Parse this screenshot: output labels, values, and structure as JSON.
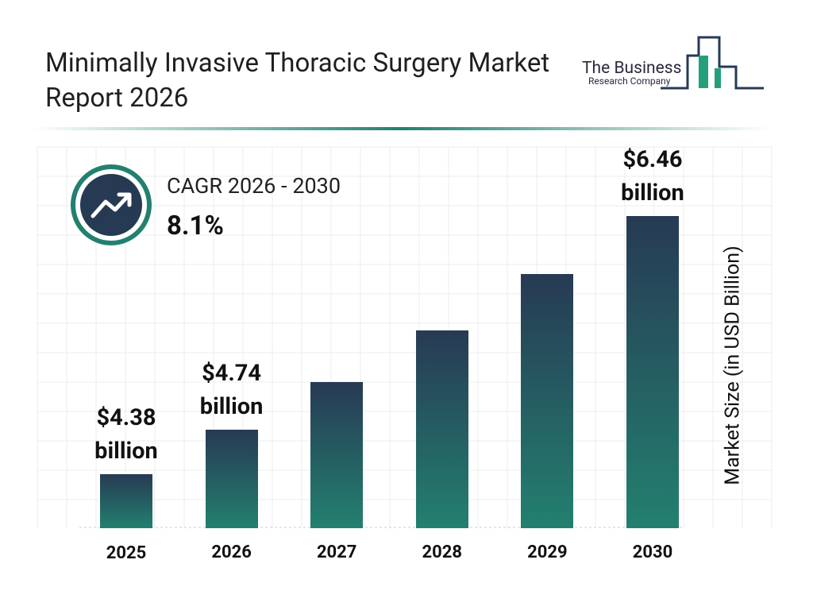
{
  "chart_data": {
    "type": "bar",
    "title": "Minimally Invasive Thoracic Surgery Market Report 2026",
    "logo": [
      "The Business",
      "Research Company"
    ],
    "cagr": {
      "label": "CAGR 2026 - 2030",
      "value": "8.1%"
    },
    "y_label": "Market Size (in USD Billion)",
    "categories": [
      "2025",
      "2026",
      "2027",
      "2028",
      "2029",
      "2030"
    ],
    "values": [
      4.38,
      4.74,
      5.12,
      5.54,
      5.99,
      6.46
    ],
    "value_labels": [
      "$4.38 billion",
      "$4.74 billion",
      null,
      null,
      null,
      "$6.46 billion"
    ],
    "color": "#23806f"
  }
}
